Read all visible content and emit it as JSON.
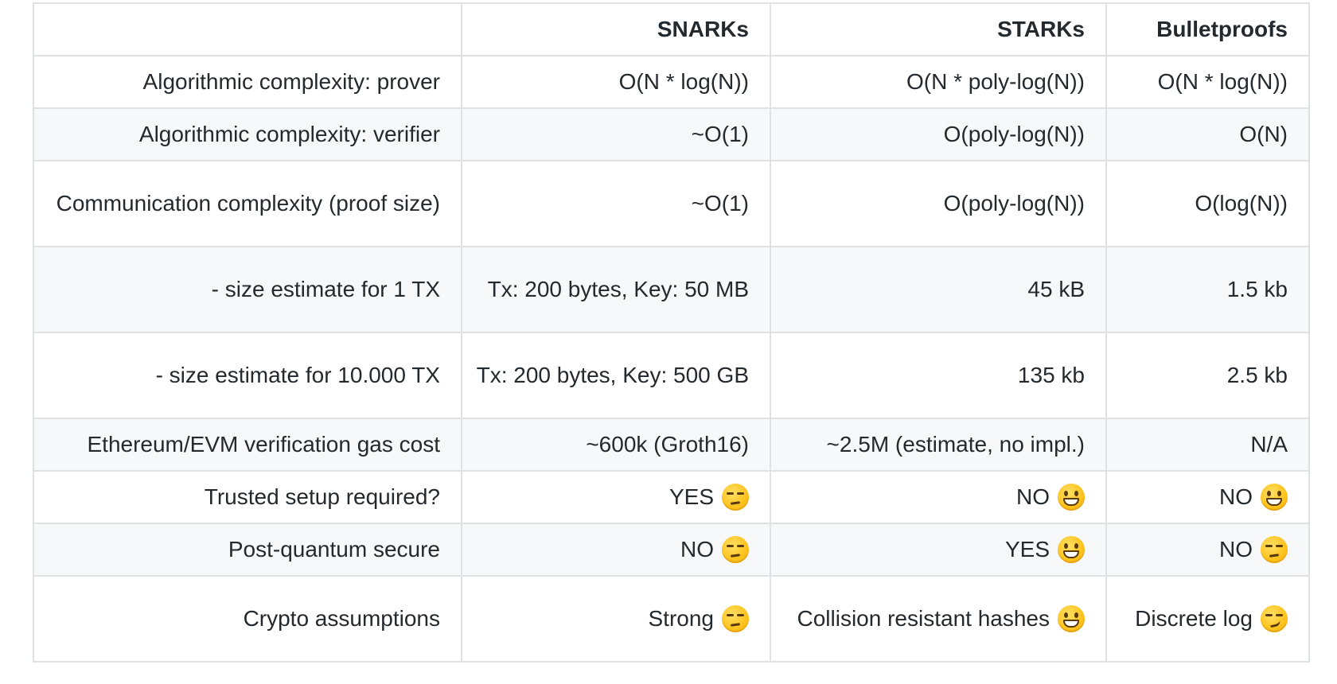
{
  "table": {
    "headers": [
      "",
      "SNARKs",
      "STARKs",
      "Bulletproofs"
    ],
    "rows": [
      {
        "label": "Algorithmic complexity: prover",
        "cells": [
          {
            "text": "O(N * log(N))",
            "emoji": null
          },
          {
            "text": "O(N * poly-log(N))",
            "emoji": null
          },
          {
            "text": "O(N * log(N))",
            "emoji": null
          }
        ]
      },
      {
        "label": "Algorithmic complexity: verifier",
        "cells": [
          {
            "text": "~O(1)",
            "emoji": null
          },
          {
            "text": "O(poly-log(N))",
            "emoji": null
          },
          {
            "text": "O(N)",
            "emoji": null
          }
        ]
      },
      {
        "label": "Communication complexity (proof size)",
        "cells": [
          {
            "text": "~O(1)",
            "emoji": null
          },
          {
            "text": "O(poly-log(N))",
            "emoji": null
          },
          {
            "text": "O(log(N))",
            "emoji": null
          }
        ]
      },
      {
        "label": "- size estimate for 1 TX",
        "cells": [
          {
            "text": "Tx: 200 bytes, Key: 50 MB",
            "emoji": null
          },
          {
            "text": "45 kB",
            "emoji": null
          },
          {
            "text": "1.5 kb",
            "emoji": null
          }
        ]
      },
      {
        "label": "- size estimate for 10.000 TX",
        "cells": [
          {
            "text": "Tx: 200 bytes, Key: 500 GB",
            "emoji": null
          },
          {
            "text": "135 kb",
            "emoji": null
          },
          {
            "text": "2.5 kb",
            "emoji": null
          }
        ]
      },
      {
        "label": "Ethereum/EVM verification gas cost",
        "cells": [
          {
            "text": "~600k (Groth16)",
            "emoji": null
          },
          {
            "text": "~2.5M (estimate, no impl.)",
            "emoji": null
          },
          {
            "text": "N/A",
            "emoji": null
          }
        ]
      },
      {
        "label": "Trusted setup required?",
        "cells": [
          {
            "text": "YES",
            "emoji": "unamused-face-icon"
          },
          {
            "text": "NO",
            "emoji": "grinning-face-icon"
          },
          {
            "text": "NO",
            "emoji": "grinning-face-icon"
          }
        ]
      },
      {
        "label": "Post-quantum secure",
        "cells": [
          {
            "text": "NO",
            "emoji": "unamused-face-icon"
          },
          {
            "text": "YES",
            "emoji": "grinning-face-icon"
          },
          {
            "text": "NO",
            "emoji": "unamused-face-icon"
          }
        ]
      },
      {
        "label": "Crypto assumptions",
        "cells": [
          {
            "text": "Strong",
            "emoji": "unamused-face-icon"
          },
          {
            "text": "Collision resistant hashes",
            "emoji": "grinning-face-icon"
          },
          {
            "text": "Discrete log",
            "emoji": "smirking-face-icon"
          }
        ]
      }
    ]
  },
  "colors": {
    "text": "#24292e",
    "border": "#dfe2e5",
    "stripe": "#f6f8fa"
  }
}
